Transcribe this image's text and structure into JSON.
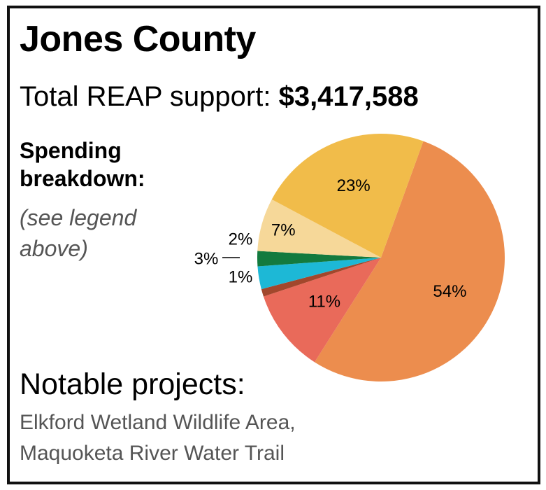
{
  "header": {
    "county": "Jones County",
    "total_label": "Total REAP support: ",
    "total_value": "$3,417,588"
  },
  "breakdown": {
    "title_line1": "Spending",
    "title_line2": "breakdown:",
    "note_line1": "(see legend",
    "note_line2": "above)"
  },
  "chart_data": {
    "type": "pie",
    "start_angle_deg": 20,
    "direction": "clockwise",
    "slices": [
      {
        "label": "54%",
        "value": 54,
        "color": "#EC8D4E"
      },
      {
        "label": "11%",
        "value": 11,
        "color": "#E96A5A"
      },
      {
        "label": "1%",
        "value": 1,
        "color": "#A2472C"
      },
      {
        "label": "3%",
        "value": 3,
        "color": "#1DB8D6"
      },
      {
        "label": "2%",
        "value": 2,
        "color": "#137A3E"
      },
      {
        "label": "7%",
        "value": 7,
        "color": "#F6D899"
      },
      {
        "label": "23%",
        "value": 23,
        "color": "#F1BC4A"
      }
    ]
  },
  "projects": {
    "title": "Notable projects:",
    "items": [
      "Elkford Wetland Wildlife Area,",
      "Maquoketa River Water Trail"
    ]
  }
}
